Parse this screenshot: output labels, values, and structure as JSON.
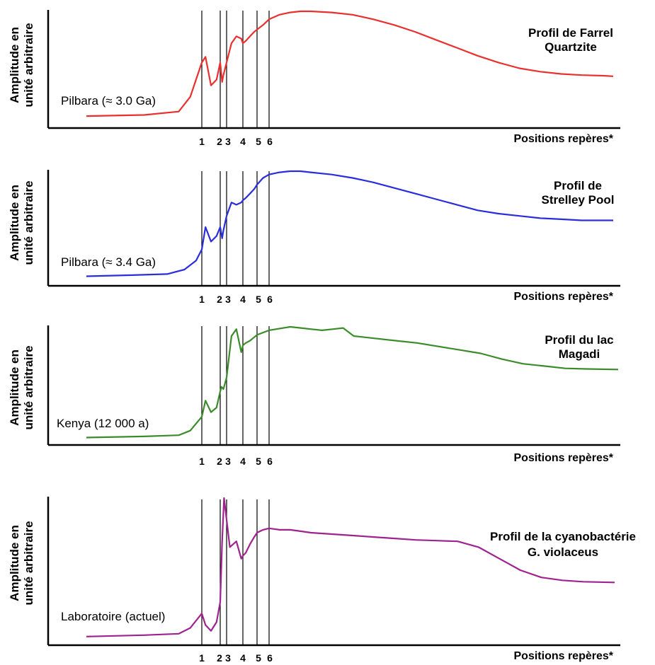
{
  "chart_data": [
    {
      "type": "line",
      "title_lines": [
        "Profil de Farrel",
        "Quartzite"
      ],
      "sample_label": "Pilbara (≈ 3.0 Ga)",
      "ylabel_lines": [
        "Amplitude en",
        "unité arbitraire"
      ],
      "xlabel": "Positions repères*",
      "marker_labels": [
        "1",
        "2",
        "3",
        "4",
        "5",
        "6"
      ],
      "marker_positions": [
        1,
        2,
        3,
        4,
        5,
        6
      ],
      "color": "#e8312e",
      "x": [
        0,
        0.5,
        0.8,
        0.9,
        1.0,
        1.2,
        1.5,
        1.8,
        2.0,
        2.3,
        2.5,
        3.0,
        3.3,
        3.6,
        3.9,
        4.0,
        4.2,
        4.5,
        4.8,
        5.0,
        5.5,
        6.0,
        6.5,
        7.0,
        7.5,
        8.0,
        9.0,
        10.0,
        11.0,
        12.0,
        13.0,
        14.0,
        15.0,
        16.0,
        17.0,
        18.0,
        19.0,
        20.0,
        21.0,
        22.0,
        22.5
      ],
      "y": [
        0.08,
        0.09,
        0.12,
        0.25,
        0.55,
        0.6,
        0.35,
        0.4,
        0.55,
        0.38,
        0.44,
        0.55,
        0.72,
        0.78,
        0.76,
        0.72,
        0.74,
        0.78,
        0.82,
        0.84,
        0.88,
        0.93,
        0.97,
        0.99,
        1.0,
        1.0,
        0.99,
        0.97,
        0.93,
        0.88,
        0.82,
        0.75,
        0.68,
        0.61,
        0.55,
        0.5,
        0.47,
        0.45,
        0.44,
        0.435,
        0.43
      ]
    },
    {
      "type": "line",
      "title_lines": [
        "Profil de",
        "Strelley Pool"
      ],
      "sample_label": "Pilbara (≈ 3.4 Ga)",
      "ylabel_lines": [
        "Amplitude en",
        "unité arbitraire"
      ],
      "xlabel": "Positions repères*",
      "marker_labels": [
        "1",
        "2",
        "3",
        "4",
        "5",
        "6"
      ],
      "marker_positions": [
        1,
        2,
        3,
        4,
        5,
        6
      ],
      "color": "#2a2ddb",
      "x": [
        0,
        0.4,
        0.7,
        0.85,
        0.95,
        1.0,
        1.2,
        1.5,
        1.8,
        2.0,
        2.3,
        2.5,
        3.0,
        3.3,
        3.6,
        3.9,
        4.0,
        4.2,
        4.5,
        4.8,
        5.0,
        5.5,
        6.0,
        6.5,
        7.0,
        7.5,
        8.0,
        9.0,
        10.0,
        11.0,
        12.0,
        13.0,
        14.0,
        15.0,
        16.0,
        17.0,
        18.0,
        19.0,
        20.0,
        21.0,
        22.5
      ],
      "y": [
        0.06,
        0.07,
        0.08,
        0.12,
        0.2,
        0.3,
        0.5,
        0.37,
        0.42,
        0.5,
        0.4,
        0.47,
        0.6,
        0.72,
        0.7,
        0.72,
        0.74,
        0.76,
        0.8,
        0.84,
        0.88,
        0.94,
        0.97,
        0.99,
        1.0,
        1.0,
        0.99,
        0.97,
        0.94,
        0.9,
        0.85,
        0.8,
        0.75,
        0.7,
        0.65,
        0.62,
        0.6,
        0.58,
        0.57,
        0.56,
        0.56
      ]
    },
    {
      "type": "line",
      "title_lines": [
        "Profil du lac",
        "Magadi"
      ],
      "sample_label": "Kenya (12 000 a)",
      "ylabel_lines": [
        "Amplitude en",
        "unité arbitraire"
      ],
      "xlabel": "Positions repères*",
      "marker_labels": [
        "1",
        "2",
        "3",
        "4",
        "5",
        "6"
      ],
      "marker_positions": [
        1,
        2,
        3,
        4,
        5,
        6
      ],
      "color": "#3a8c2b",
      "x": [
        0,
        0.5,
        0.8,
        0.9,
        1.0,
        1.2,
        1.5,
        1.8,
        2.0,
        2.2,
        2.5,
        3.0,
        3.3,
        3.6,
        3.9,
        4.0,
        4.2,
        4.5,
        4.8,
        5.0,
        5.5,
        6.0,
        6.5,
        7.0,
        7.5,
        8.0,
        8.5,
        9.0,
        9.5,
        10.0,
        11.0,
        12.0,
        13.0,
        14.0,
        15.0,
        16.0,
        17.0,
        18.0,
        19.0,
        20.0,
        21.0,
        22.5
      ],
      "y": [
        0.04,
        0.05,
        0.06,
        0.1,
        0.22,
        0.36,
        0.26,
        0.3,
        0.44,
        0.48,
        0.46,
        0.56,
        0.92,
        0.98,
        0.78,
        0.84,
        0.86,
        0.88,
        0.91,
        0.93,
        0.95,
        0.97,
        0.985,
        1.0,
        0.99,
        0.98,
        0.97,
        0.98,
        0.99,
        0.92,
        0.9,
        0.88,
        0.86,
        0.83,
        0.8,
        0.77,
        0.72,
        0.68,
        0.66,
        0.64,
        0.635,
        0.63
      ]
    },
    {
      "type": "line",
      "title_lines": [
        "Profil de la cyanobactérie",
        "G. violaceus"
      ],
      "sample_label": "Laboratoire (actuel)",
      "ylabel_lines": [
        "Amplitude en",
        "unité arbitraire"
      ],
      "xlabel": "Positions repères*",
      "marker_labels": [
        "1",
        "2",
        "3",
        "4",
        "5",
        "6"
      ],
      "marker_positions": [
        1,
        2,
        3,
        4,
        5,
        6
      ],
      "color": "#a0228f",
      "x": [
        0,
        0.5,
        0.8,
        0.9,
        1.0,
        1.2,
        1.5,
        1.8,
        2.0,
        2.3,
        2.6,
        3.0,
        3.2,
        3.6,
        3.9,
        4.0,
        4.2,
        4.5,
        4.8,
        5.0,
        5.5,
        6.0,
        6.5,
        7.0,
        7.5,
        8.0,
        9.0,
        10.0,
        11.0,
        12.0,
        13.0,
        14.0,
        15.0,
        16.0,
        17.0,
        18.0,
        19.0,
        20.0,
        21.0,
        22.5
      ],
      "y": [
        0.04,
        0.05,
        0.06,
        0.1,
        0.2,
        0.12,
        0.08,
        0.14,
        0.28,
        0.7,
        1.0,
        0.85,
        0.66,
        0.7,
        0.58,
        0.6,
        0.62,
        0.68,
        0.73,
        0.76,
        0.78,
        0.79,
        0.78,
        0.78,
        0.77,
        0.76,
        0.75,
        0.74,
        0.73,
        0.72,
        0.71,
        0.705,
        0.7,
        0.66,
        0.58,
        0.5,
        0.45,
        0.43,
        0.42,
        0.415
      ]
    }
  ]
}
